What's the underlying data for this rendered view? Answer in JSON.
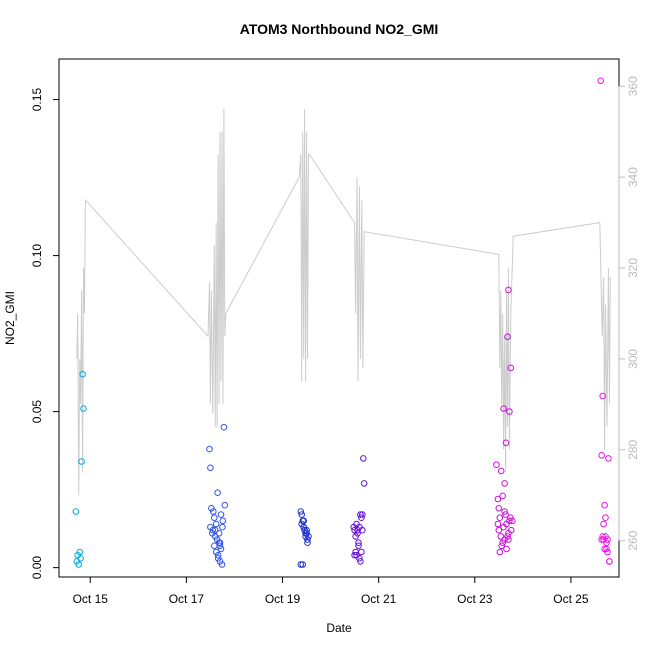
{
  "chart_data": {
    "type": "scatter",
    "title": "ATOM3 Northbound NO2_GMI",
    "xlabel": "Date",
    "ylabel": "NO2_GMI",
    "x_ticks": [
      "Oct 15",
      "Oct 17",
      "Oct 19",
      "Oct 21",
      "Oct 23",
      "Oct 25"
    ],
    "x_tick_days": [
      15,
      17,
      19,
      21,
      23,
      25
    ],
    "xlim": [
      14.35,
      26.0
    ],
    "ylim": [
      -0.003,
      0.163
    ],
    "y_ticks": [
      0.0,
      0.05,
      0.1,
      0.15
    ],
    "y_tick_labels": [
      "0.00",
      "0.05",
      "0.10",
      "0.15"
    ],
    "y2lim": [
      252,
      366
    ],
    "y2_ticks": [
      260,
      280,
      300,
      320,
      340,
      360
    ],
    "y2_tick_labels": [
      "260",
      "280",
      "300",
      "320",
      "340",
      "360"
    ],
    "grid": false,
    "legend": "none",
    "colors": {
      "line": "#cccccc",
      "axis": "#000000",
      "secondary_axis": "#bbbbbb"
    },
    "line_series": {
      "axis": "secondary",
      "x": [
        14.72,
        14.74,
        14.76,
        14.78,
        14.8,
        14.82,
        14.84,
        14.86,
        14.88,
        14.9,
        17.45,
        17.48,
        17.5,
        17.52,
        17.55,
        17.58,
        17.6,
        17.62,
        17.64,
        17.66,
        17.68,
        17.7,
        17.72,
        17.74,
        17.76,
        17.78,
        17.8,
        17.82,
        19.35,
        19.38,
        19.4,
        19.42,
        19.44,
        19.46,
        19.48,
        19.5,
        19.52,
        19.54,
        19.56,
        20.5,
        20.52,
        20.55,
        20.57,
        20.6,
        20.62,
        20.65,
        20.67,
        20.7,
        23.5,
        23.52,
        23.54,
        23.56,
        23.58,
        23.6,
        23.62,
        23.64,
        23.66,
        23.68,
        23.7,
        23.72,
        23.75,
        23.8,
        25.6,
        25.65,
        25.68,
        25.7,
        25.72,
        25.75,
        25.78,
        25.8,
        25.82
      ],
      "y": [
        300,
        310,
        270,
        300,
        290,
        315,
        275,
        320,
        310,
        335,
        305,
        317,
        290,
        315,
        288,
        325,
        285,
        330,
        285,
        345,
        290,
        350,
        295,
        350,
        290,
        355,
        305,
        310,
        340,
        345,
        295,
        350,
        300,
        355,
        295,
        350,
        300,
        345,
        345,
        330,
        310,
        340,
        295,
        338,
        300,
        335,
        298,
        328,
        323,
        298,
        315,
        290,
        310,
        280,
        305,
        275,
        315,
        285,
        320,
        280,
        310,
        327,
        330,
        305,
        318,
        280,
        312,
        285,
        320,
        290,
        318
      ]
    },
    "series": [
      {
        "color": "#00aadd",
        "x": [
          14.7,
          14.72,
          14.74,
          14.76,
          14.78,
          14.8,
          14.82,
          14.84,
          14.86
        ],
        "y": [
          0.018,
          0.002,
          0.004,
          0.001,
          0.005,
          0.003,
          0.034,
          0.062,
          0.051
        ]
      },
      {
        "color": "#3355ee",
        "x": [
          17.48,
          17.5,
          17.52,
          17.55,
          17.58,
          17.6,
          17.62,
          17.65,
          17.68,
          17.7,
          17.72,
          17.75,
          17.78,
          17.8,
          17.5,
          17.56,
          17.62,
          17.66,
          17.7,
          17.74,
          17.6,
          17.64,
          17.68,
          17.72,
          17.76,
          17.58,
          17.54,
          17.66,
          17.7
        ],
        "y": [
          0.038,
          0.032,
          0.019,
          0.012,
          0.016,
          0.01,
          0.014,
          0.024,
          0.008,
          0.007,
          0.017,
          0.013,
          0.045,
          0.02,
          0.013,
          0.018,
          0.005,
          0.003,
          0.002,
          0.001,
          0.012,
          0.009,
          0.011,
          0.006,
          0.015,
          0.007,
          0.011,
          0.004,
          0.008
        ]
      },
      {
        "color": "#2233cc",
        "x": [
          19.38,
          19.4,
          19.42,
          19.44,
          19.46,
          19.48,
          19.5,
          19.52,
          19.54,
          19.4,
          19.44,
          19.48,
          19.52,
          19.42,
          19.46,
          19.5,
          19.38,
          19.44
        ],
        "y": [
          0.018,
          0.017,
          0.015,
          0.013,
          0.012,
          0.011,
          0.012,
          0.009,
          0.01,
          0.014,
          0.013,
          0.01,
          0.008,
          0.001,
          0.012,
          0.011,
          0.001,
          0.015
        ]
      },
      {
        "color": "#6611dd",
        "x": [
          20.48,
          20.5,
          20.52,
          20.54,
          20.56,
          20.58,
          20.6,
          20.62,
          20.64,
          20.66,
          20.68,
          20.7,
          20.5,
          20.54,
          20.58,
          20.62,
          20.66,
          20.6,
          20.52,
          20.56,
          20.64
        ],
        "y": [
          0.013,
          0.012,
          0.01,
          0.014,
          0.011,
          0.008,
          0.013,
          0.017,
          0.005,
          0.017,
          0.035,
          0.027,
          0.004,
          0.004,
          0.007,
          0.002,
          0.012,
          0.003,
          0.005,
          0.012,
          0.016
        ]
      },
      {
        "color": "#cc11dd",
        "x": [
          23.45,
          23.48,
          23.5,
          23.52,
          23.55,
          23.58,
          23.6,
          23.62,
          23.65,
          23.68,
          23.7,
          23.72,
          23.75,
          23.78,
          23.5,
          23.54,
          23.58,
          23.62,
          23.66,
          23.7,
          23.74,
          23.52,
          23.56,
          23.6,
          23.64,
          23.68,
          23.72,
          23.48,
          23.76,
          23.62,
          23.66,
          23.7
        ],
        "y": [
          0.033,
          0.022,
          0.019,
          0.016,
          0.031,
          0.023,
          0.051,
          0.018,
          0.04,
          0.074,
          0.089,
          0.05,
          0.064,
          0.015,
          0.012,
          0.01,
          0.008,
          0.009,
          0.014,
          0.011,
          0.016,
          0.005,
          0.007,
          0.013,
          0.017,
          0.01,
          0.015,
          0.014,
          0.012,
          0.027,
          0.006,
          0.009
        ]
      },
      {
        "color": "#ee11ee",
        "x": [
          25.62,
          25.64,
          25.66,
          25.68,
          25.7,
          25.72,
          25.74,
          25.76,
          25.78,
          25.8,
          25.64,
          25.68,
          25.72,
          25.76,
          25.8,
          25.66,
          25.7,
          25.74
        ],
        "y": [
          0.156,
          0.036,
          0.055,
          0.014,
          0.02,
          0.01,
          0.006,
          0.009,
          0.035,
          0.002,
          0.009,
          0.009,
          0.016,
          0.005,
          0.002,
          0.01,
          0.006,
          0.008
        ]
      }
    ]
  }
}
